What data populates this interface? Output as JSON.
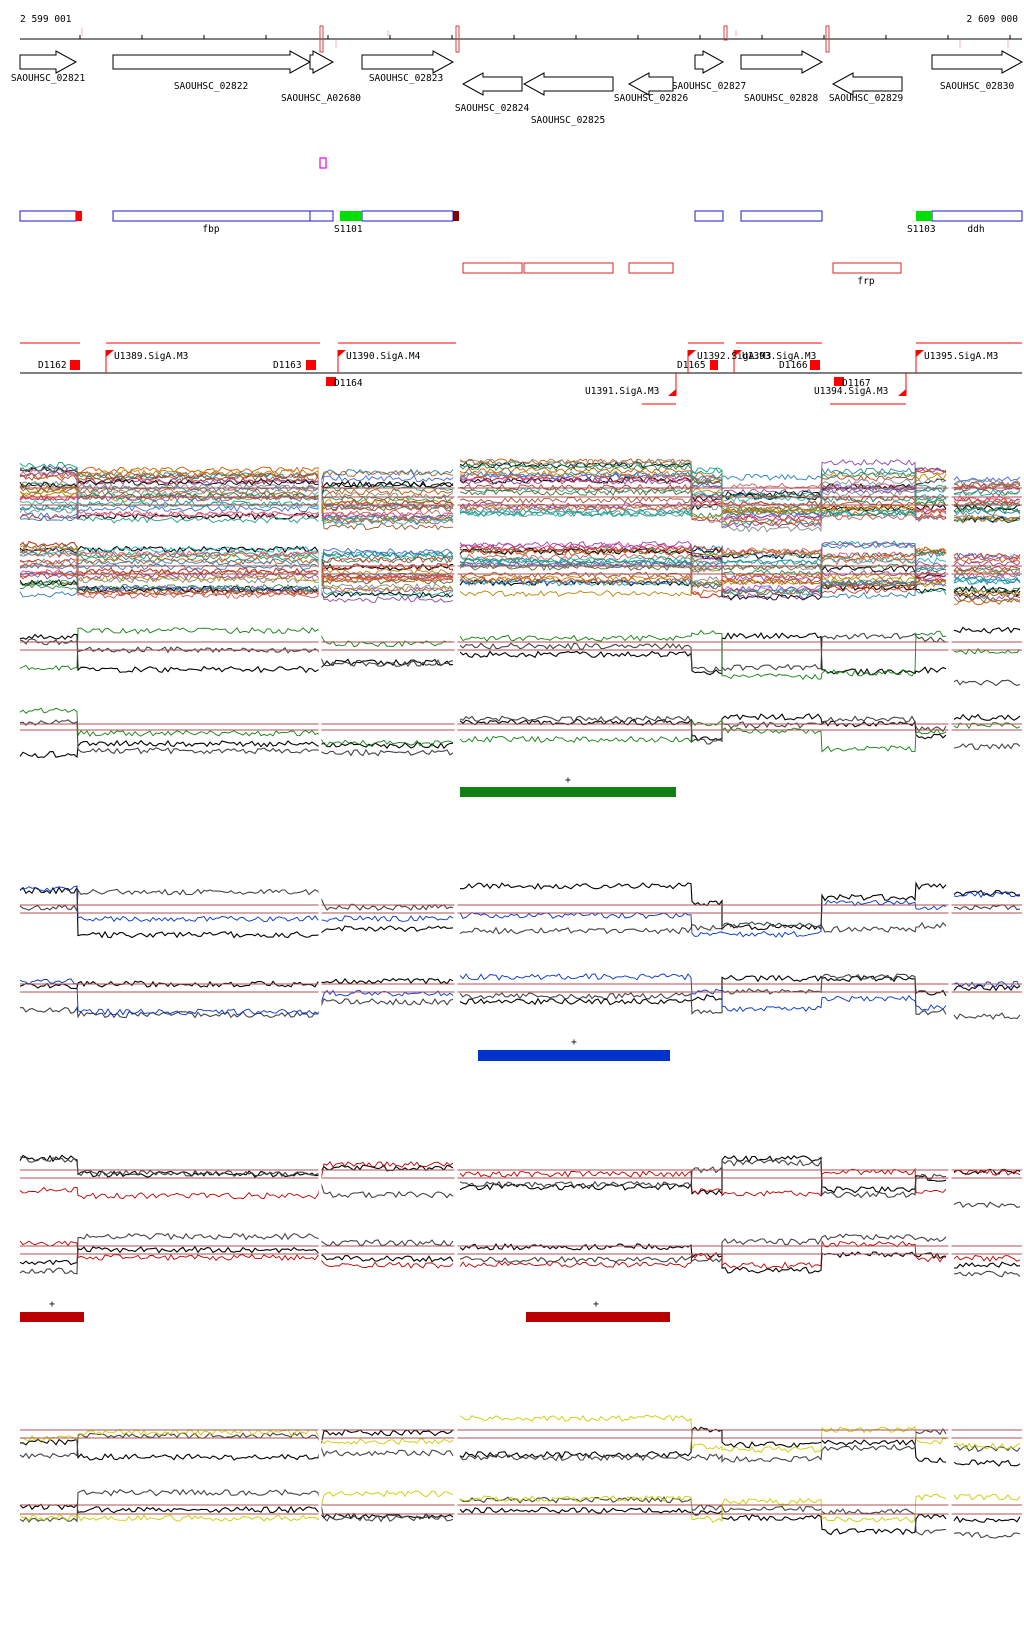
{
  "coordinates": {
    "start": "2 599 001",
    "end": "2 609 000"
  },
  "colors": {
    "gene_outline": "#000000",
    "annotation_blue": "#1a1acc",
    "annotation_red": "#e02020",
    "promoter_red": "#ff0000",
    "s_green": "#00dd00",
    "dark_red": "#880000",
    "marker_magenta": "#ee00ee",
    "track_green": "#128012",
    "track_blue": "#0033cc",
    "track_red": "#bb0000",
    "track_yellow": "#cccc00",
    "threshold_line": "#b05050"
  },
  "genes": [
    {
      "label": "SAOUHSC_02821",
      "strand": "+"
    },
    {
      "label": "SAOUHSC_02822",
      "strand": "+"
    },
    {
      "label": "SAOUHSC_A02680",
      "strand": "+"
    },
    {
      "label": "SAOUHSC_02823",
      "strand": "+"
    },
    {
      "label": "SAOUHSC_02824",
      "strand": "-"
    },
    {
      "label": "SAOUHSC_02825",
      "strand": "-"
    },
    {
      "label": "SAOUHSC_02826",
      "strand": "-"
    },
    {
      "label": "SAOUHSC_02827",
      "strand": "+"
    },
    {
      "label": "SAOUHSC_02828",
      "strand": "+"
    },
    {
      "label": "SAOUHSC_02829",
      "strand": "-"
    },
    {
      "label": "SAOUHSC_02830",
      "strand": "+"
    }
  ],
  "annotation_labels": {
    "fbp": "fbp",
    "s1101": "S1101",
    "s1103": "S1103",
    "ddh": "ddh",
    "frp": "frp"
  },
  "promoter_labels": {
    "d1162": "D1162",
    "u1389": "U1389.SigA.M3",
    "d1163": "D1163",
    "u1390": "U1390.SigA.M4",
    "d1164": "D1164",
    "u1391": "U1391.SigA.M3",
    "d1165": "D1165",
    "u1392": "U1392.SigA.M3",
    "u1393": "U1393.SigA.M3",
    "d1166": "D1166",
    "d1167": "D1167",
    "u1394": "U1394.SigA.M3",
    "u1395": "U1395.SigA.M3"
  },
  "segment_marks": {
    "green": "+",
    "blue": "+",
    "red_left": "+",
    "red_right": "+"
  }
}
